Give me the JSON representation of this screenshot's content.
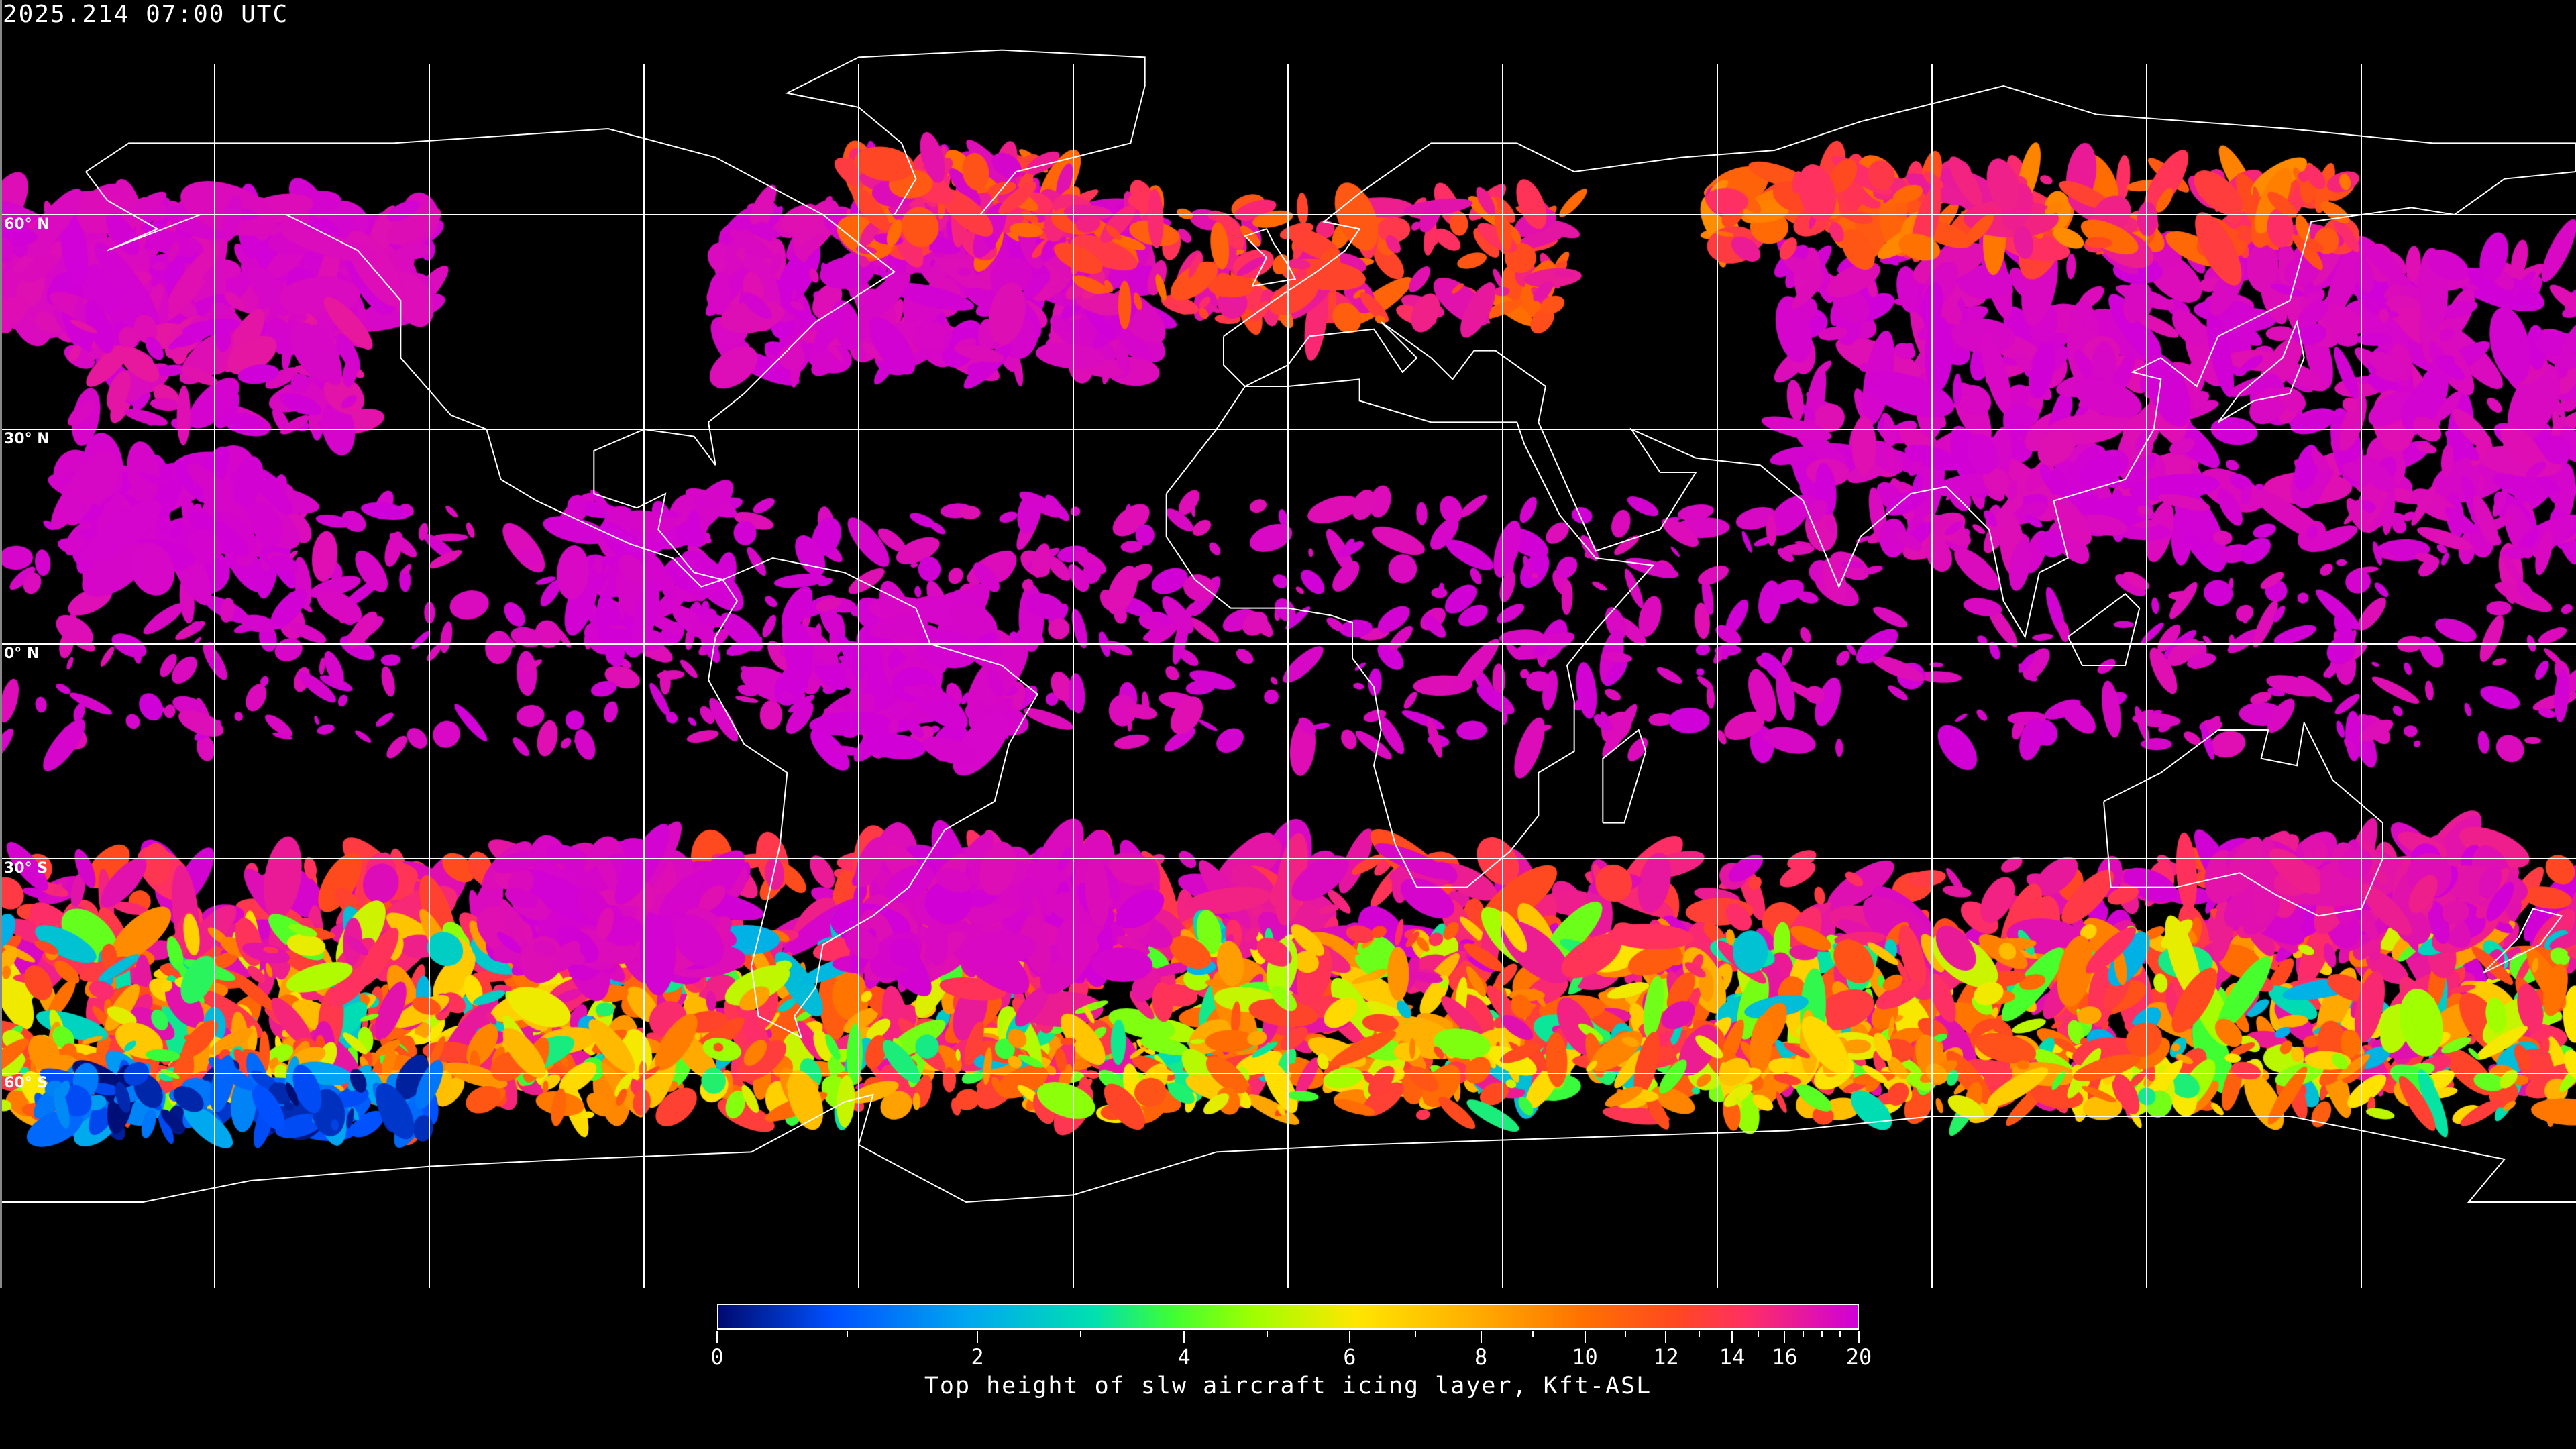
{
  "header": {
    "timestamp": "2025.214 07:00 UTC"
  },
  "map": {
    "projection": "equirectangular",
    "grid_spacing_deg": 30,
    "lat_labels": [
      "60° N",
      "30° N",
      "0° N",
      "30° S",
      "60° S"
    ],
    "background_color": "#000000",
    "coastline_color": "#ffffff",
    "grid_color": "#ffffff"
  },
  "colorbar": {
    "min": 0,
    "max": 20,
    "tick_labels": [
      "0",
      "2",
      "4",
      "6",
      "8",
      "10",
      "12",
      "14",
      "16",
      "20"
    ],
    "minor_ticks": [
      1,
      3,
      5,
      7,
      9,
      11,
      13,
      15,
      17,
      18,
      19
    ],
    "caption": "Top height of slw aircraft icing layer, Kft-ASL",
    "colors": [
      "#000a6e",
      "#0050ff",
      "#00a8f0",
      "#00e0b0",
      "#40ff30",
      "#a0ff00",
      "#ffe600",
      "#ffb000",
      "#ff7000",
      "#ff4820",
      "#ff3060",
      "#d000d8"
    ]
  }
}
